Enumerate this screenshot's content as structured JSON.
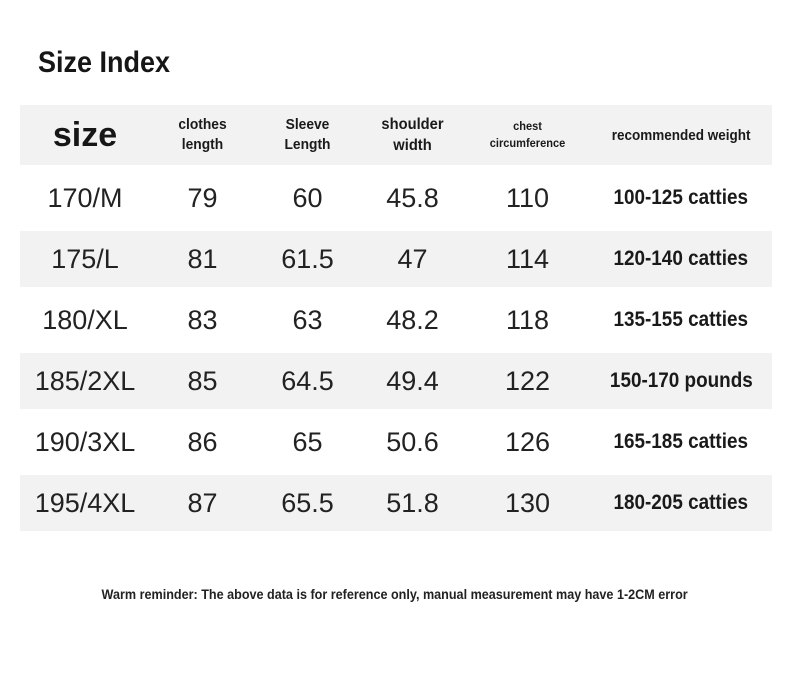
{
  "page": {
    "title": "Size Index",
    "footer_note": "Warm reminder: The above data is for reference only, manual measurement may have 1-2CM error"
  },
  "colors": {
    "background": "#ffffff",
    "stripe": "#f2f2f2",
    "text": "#1a1a1a"
  },
  "table": {
    "columns": [
      {
        "label": "size"
      },
      {
        "line1": "clothes",
        "line2": "length"
      },
      {
        "line1": "Sleeve",
        "line2": "Length"
      },
      {
        "line1": "shoulder",
        "line2": "width"
      },
      {
        "line1": "chest",
        "line2": "circumference"
      },
      {
        "label": "recommended weight"
      }
    ],
    "rows": [
      {
        "size": "170/M",
        "clothes_length": "79",
        "sleeve_length": "60",
        "shoulder_width": "45.8",
        "chest_circumference": "110",
        "recommended_weight": "100-125 catties"
      },
      {
        "size": "175/L",
        "clothes_length": "81",
        "sleeve_length": "61.5",
        "shoulder_width": "47",
        "chest_circumference": "114",
        "recommended_weight": "120-140 catties"
      },
      {
        "size": "180/XL",
        "clothes_length": "83",
        "sleeve_length": "63",
        "shoulder_width": "48.2",
        "chest_circumference": "118",
        "recommended_weight": "135-155 catties"
      },
      {
        "size": "185/2XL",
        "clothes_length": "85",
        "sleeve_length": "64.5",
        "shoulder_width": "49.4",
        "chest_circumference": "122",
        "recommended_weight": "150-170 pounds"
      },
      {
        "size": "190/3XL",
        "clothes_length": "86",
        "sleeve_length": "65",
        "shoulder_width": "50.6",
        "chest_circumference": "126",
        "recommended_weight": "165-185 catties"
      },
      {
        "size": "195/4XL",
        "clothes_length": "87",
        "sleeve_length": "65.5",
        "shoulder_width": "51.8",
        "chest_circumference": "130",
        "recommended_weight": "180-205 catties"
      }
    ]
  }
}
